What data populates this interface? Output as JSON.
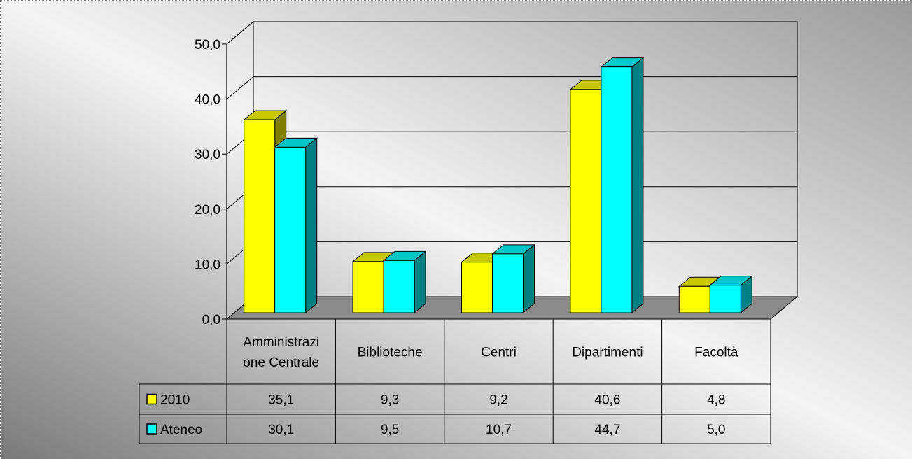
{
  "chart_data": {
    "type": "bar",
    "categories": [
      "Amministrazione Centrale",
      "Biblioteche",
      "Centri",
      "Dipartimenti",
      "Facoltà"
    ],
    "category_label_lines": [
      [
        "Amministrazi",
        "one Centrale"
      ],
      [
        "Biblioteche"
      ],
      [
        "Centri"
      ],
      [
        "Dipartimenti"
      ],
      [
        "Facoltà"
      ]
    ],
    "series": [
      {
        "name": "2010",
        "values": [
          35.1,
          9.3,
          9.2,
          40.6,
          4.8
        ],
        "labels": [
          "35,1",
          "9,3",
          "9,2",
          "40,6",
          "4,8"
        ]
      },
      {
        "name": "Ateneo",
        "values": [
          30.1,
          9.5,
          10.7,
          44.7,
          5.0
        ],
        "labels": [
          "30,1",
          "9,5",
          "10,7",
          "44,7",
          "5,0"
        ]
      }
    ],
    "y_ticks": [
      0,
      10,
      20,
      30,
      40,
      50
    ],
    "y_tick_labels": [
      "0,0",
      "10,0",
      "20,0",
      "30,0",
      "40,0",
      "50,0"
    ],
    "ylim": [
      0,
      50
    ],
    "title": "",
    "xlabel": "",
    "ylabel": "",
    "grid": true,
    "style": "3d-clustered-column",
    "data_table": true,
    "legend": "in data table",
    "colors": {
      "series_front": [
        "#FFFF00",
        "#00FFFF"
      ],
      "series_top": [
        "#C8C800",
        "#00C8C8"
      ],
      "series_side": [
        "#808000",
        "#008080"
      ],
      "floor": "#8a8a8a",
      "background_light": "#ffffff",
      "background_dark": "#7a7a7a"
    }
  }
}
